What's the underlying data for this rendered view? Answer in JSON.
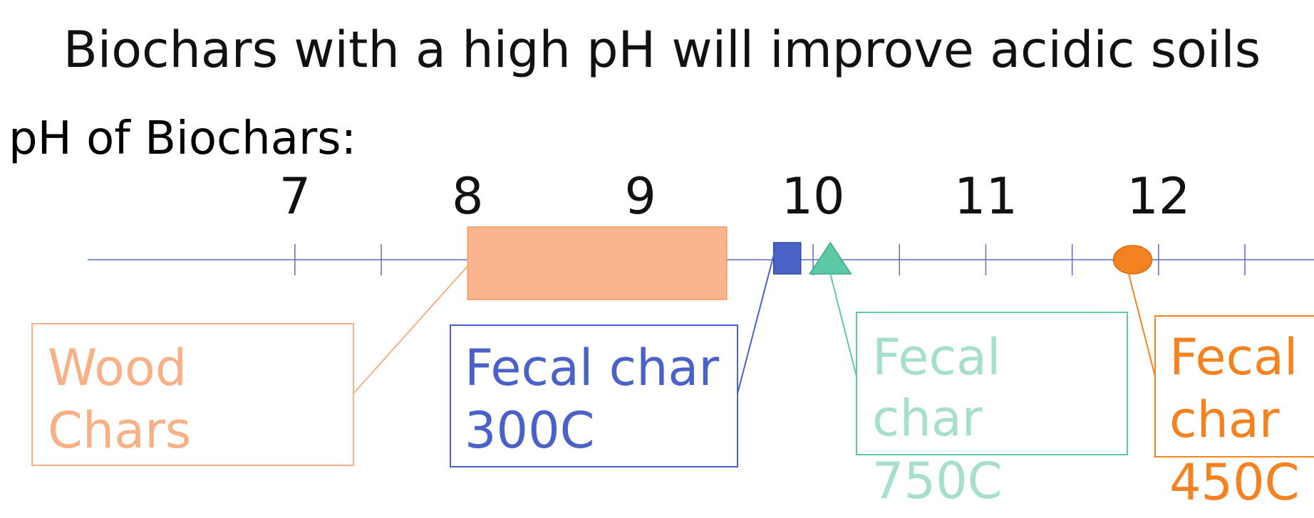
{
  "chart_data": {
    "type": "number-line",
    "subtitle": "Biochars with a high pH will improve acidic soils",
    "axis_label": "pH of Biochars:",
    "xlim": [
      5.8,
      12.9
    ],
    "xticks": [
      7,
      8,
      9,
      10,
      11,
      12
    ],
    "minor_xticks": [
      7.5,
      8.5,
      9.5,
      10.5,
      11.5,
      12.5
    ],
    "axis_color": "#5b6fc4",
    "series": [
      {
        "label_lines": [
          "Wood",
          "Chars"
        ],
        "shape": "range",
        "color": "#fbb48e",
        "text_color": "#f8b186",
        "values": [
          8,
          9.5
        ]
      },
      {
        "label_lines": [
          "Fecal char",
          "300C"
        ],
        "shape": "square",
        "color": "#4a62c8",
        "text_color": "#4a62c8",
        "values": [
          9.85
        ]
      },
      {
        "label_lines": [
          "Fecal",
          "char",
          "750C"
        ],
        "shape": "triangle",
        "color": "#5ccaa8",
        "text_color": "#a6dfca",
        "values": [
          10.1
        ]
      },
      {
        "label_lines": [
          "Fecal",
          "char",
          "450C"
        ],
        "shape": "circle",
        "color": "#f58220",
        "text_color": "#f58220",
        "values": [
          11.85
        ]
      }
    ]
  }
}
